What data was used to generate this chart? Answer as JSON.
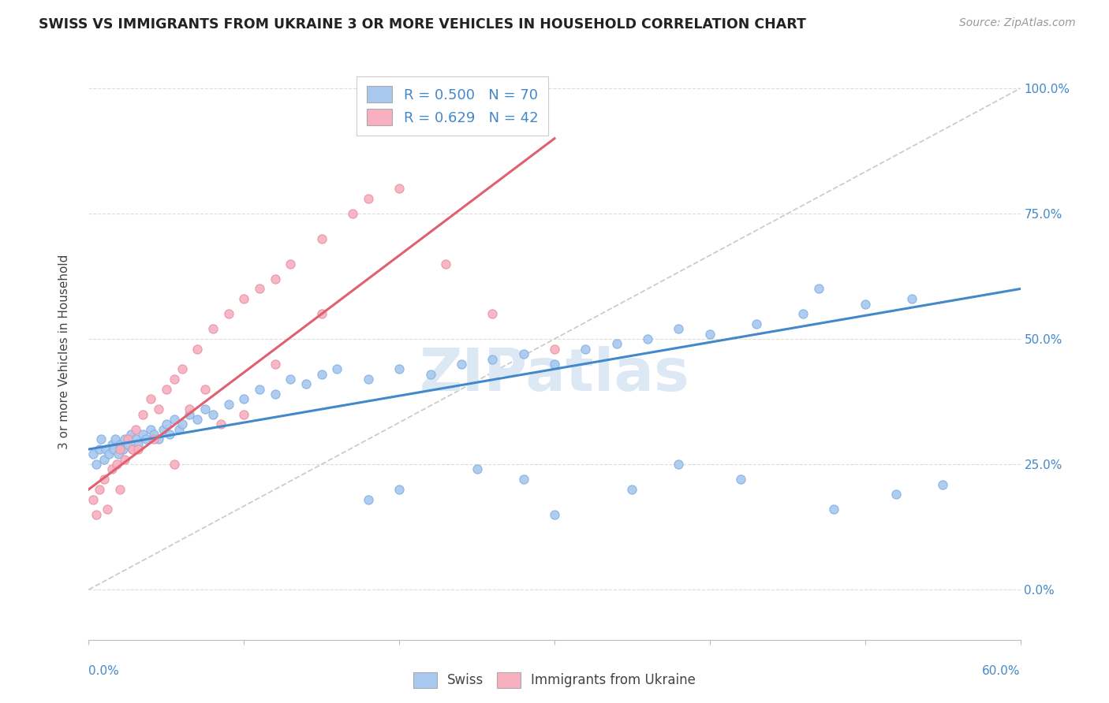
{
  "title": "SWISS VS IMMIGRANTS FROM UKRAINE 3 OR MORE VEHICLES IN HOUSEHOLD CORRELATION CHART",
  "source": "Source: ZipAtlas.com",
  "ylabel_text": "3 or more Vehicles in Household",
  "legend_swiss_r": "R = 0.500",
  "legend_swiss_n": "N = 70",
  "legend_ukraine_r": "R = 0.629",
  "legend_ukraine_n": "N = 42",
  "legend_swiss_label": "Swiss",
  "legend_ukraine_label": "Immigrants from Ukraine",
  "watermark": "ZIPatlas",
  "swiss_color": "#a8c8f0",
  "swiss_edge_color": "#80b0e0",
  "ukraine_color": "#f8b0c0",
  "ukraine_edge_color": "#e890a0",
  "swiss_line_color": "#4488cc",
  "ukraine_line_color": "#e06070",
  "diag_line_color": "#cccccc",
  "ytick_color": "#4488cc",
  "xtick_color": "#4488cc",
  "swiss_x": [
    0.3,
    0.5,
    0.7,
    0.8,
    1.0,
    1.1,
    1.3,
    1.5,
    1.6,
    1.7,
    1.9,
    2.0,
    2.2,
    2.3,
    2.5,
    2.7,
    2.8,
    3.0,
    3.2,
    3.5,
    3.7,
    4.0,
    4.2,
    4.5,
    4.8,
    5.0,
    5.2,
    5.5,
    5.8,
    6.0,
    6.5,
    7.0,
    7.5,
    8.0,
    9.0,
    10.0,
    11.0,
    12.0,
    13.0,
    14.0,
    15.0,
    16.0,
    18.0,
    20.0,
    22.0,
    24.0,
    26.0,
    28.0,
    30.0,
    32.0,
    34.0,
    36.0,
    38.0,
    40.0,
    43.0,
    46.0,
    50.0,
    53.0,
    47.0,
    35.0,
    28.0,
    25.0,
    20.0,
    18.0,
    42.0,
    48.0,
    52.0,
    55.0,
    38.0,
    30.0
  ],
  "swiss_y": [
    27.0,
    25.0,
    28.0,
    30.0,
    26.0,
    28.0,
    27.0,
    29.0,
    28.0,
    30.0,
    27.0,
    29.0,
    28.0,
    30.0,
    29.0,
    31.0,
    28.0,
    30.0,
    29.0,
    31.0,
    30.0,
    32.0,
    31.0,
    30.0,
    32.0,
    33.0,
    31.0,
    34.0,
    32.0,
    33.0,
    35.0,
    34.0,
    36.0,
    35.0,
    37.0,
    38.0,
    40.0,
    39.0,
    42.0,
    41.0,
    43.0,
    44.0,
    42.0,
    44.0,
    43.0,
    45.0,
    46.0,
    47.0,
    45.0,
    48.0,
    49.0,
    50.0,
    52.0,
    51.0,
    53.0,
    55.0,
    57.0,
    58.0,
    60.0,
    20.0,
    22.0,
    24.0,
    20.0,
    18.0,
    22.0,
    16.0,
    19.0,
    21.0,
    25.0,
    15.0
  ],
  "ukraine_x": [
    0.3,
    0.5,
    0.7,
    1.0,
    1.2,
    1.5,
    1.8,
    2.0,
    2.3,
    2.5,
    2.8,
    3.0,
    3.5,
    4.0,
    4.5,
    5.0,
    5.5,
    6.0,
    7.0,
    8.0,
    9.0,
    10.0,
    11.0,
    12.0,
    13.0,
    15.0,
    17.0,
    18.0,
    20.0,
    23.0,
    26.0,
    30.0,
    8.5,
    6.5,
    4.2,
    3.2,
    7.5,
    12.0,
    5.5,
    10.0,
    2.0,
    15.0
  ],
  "ukraine_y": [
    18.0,
    15.0,
    20.0,
    22.0,
    16.0,
    24.0,
    25.0,
    28.0,
    26.0,
    30.0,
    28.0,
    32.0,
    35.0,
    38.0,
    36.0,
    40.0,
    42.0,
    44.0,
    48.0,
    52.0,
    55.0,
    58.0,
    60.0,
    62.0,
    65.0,
    70.0,
    75.0,
    78.0,
    80.0,
    65.0,
    55.0,
    48.0,
    33.0,
    36.0,
    30.0,
    28.0,
    40.0,
    45.0,
    25.0,
    35.0,
    20.0,
    55.0
  ],
  "swiss_trend": [
    28.0,
    60.0
  ],
  "ukraine_trend": [
    20.0,
    90.0
  ],
  "xmin": 0.0,
  "xmax": 60.0,
  "ymin": -10.0,
  "ymax": 105.0,
  "yticks": [
    0,
    25,
    50,
    75,
    100
  ],
  "ytick_labels": [
    "0.0%",
    "25.0%",
    "50.0%",
    "75.0%",
    "100.0%"
  ],
  "xtick_label_left": "0.0%",
  "xtick_label_right": "60.0%"
}
